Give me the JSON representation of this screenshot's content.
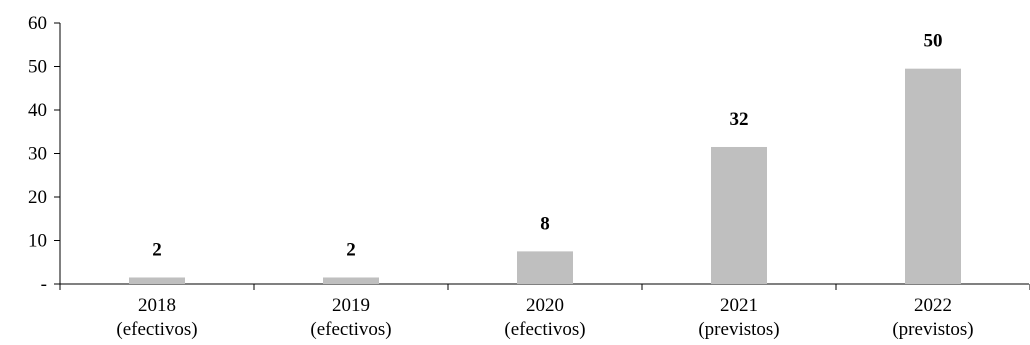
{
  "chart_data": {
    "type": "bar",
    "categories": [
      [
        "2018",
        "(efectivos)"
      ],
      [
        "2019",
        "(efectivos)"
      ],
      [
        "2020",
        "(efectivos)"
      ],
      [
        "2021",
        "(previstos)"
      ],
      [
        "2022",
        "(previstos)"
      ]
    ],
    "values": [
      1.5,
      1.5,
      7.5,
      31.5,
      49.5
    ],
    "data_labels": [
      "2",
      "2",
      "8",
      "32",
      "50"
    ],
    "y_tick_labels": [
      "-",
      "10",
      "20",
      "30",
      "40",
      "50",
      "60"
    ],
    "y_ticks": [
      0,
      10,
      20,
      30,
      40,
      50,
      60
    ],
    "ylim": [
      0,
      60
    ],
    "title": "",
    "xlabel": "",
    "ylabel": "",
    "grid": false,
    "legend": "none",
    "bar_color": "#bfbfbf"
  }
}
